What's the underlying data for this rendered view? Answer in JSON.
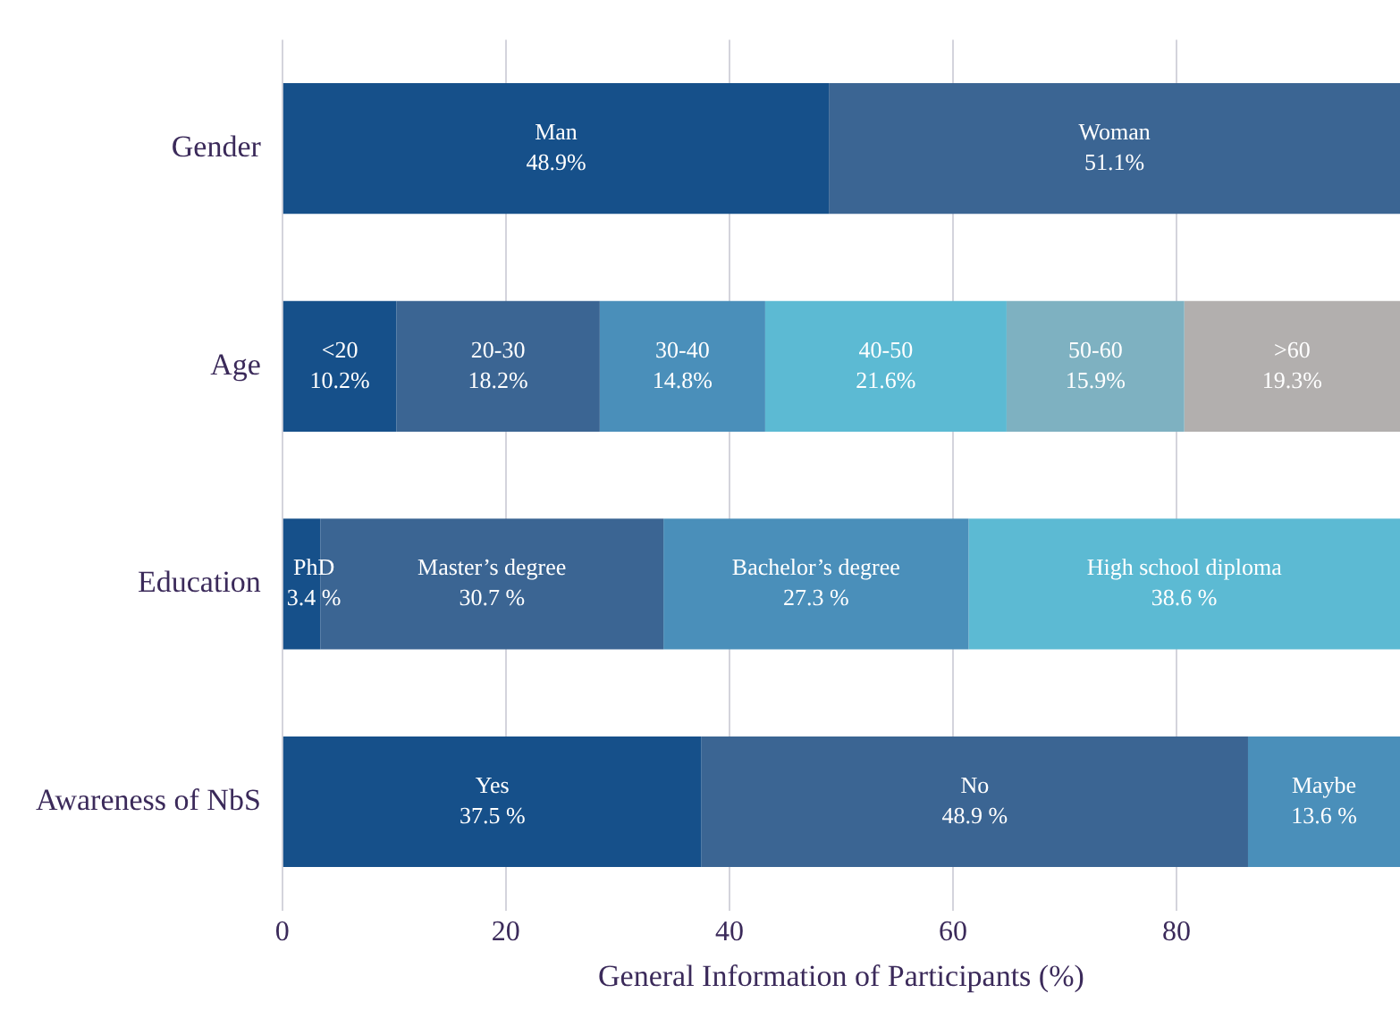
{
  "chart_data": {
    "type": "bar",
    "orientation": "horizontal",
    "stacked": true,
    "xlabel": "General Information of Participants (%)",
    "categories": [
      "Gender",
      "Age",
      "Education",
      "Awareness of NbS"
    ],
    "series": [
      {
        "color": "#16508a",
        "values": [
          48.9,
          10.2,
          3.4,
          37.5
        ],
        "value_labels": [
          "Man\n48.9%",
          "<20\n10.2%",
          "PhD\n3.4 %",
          "Yes\n37.5 %"
        ]
      },
      {
        "color": "#3b6593",
        "values": [
          51.1,
          18.2,
          30.7,
          48.9
        ],
        "value_labels": [
          "Woman\n51.1%",
          "20-30\n18.2%",
          "Master’s degree\n30.7 %",
          "No\n48.9 %"
        ]
      },
      {
        "color": "#4a8fba",
        "values": [
          null,
          14.8,
          27.3,
          13.6
        ],
        "value_labels": [
          null,
          "30-40\n14.8%",
          "Bachelor’s degree\n27.3 %",
          "Maybe\n13.6 %"
        ]
      },
      {
        "color": "#5cbad3",
        "values": [
          null,
          21.6,
          38.6,
          null
        ],
        "value_labels": [
          null,
          "40-50\n21.6%",
          "High school diploma\n38.6 %",
          null
        ]
      },
      {
        "color": "#7eb1c1",
        "values": [
          null,
          15.9,
          null,
          null
        ],
        "value_labels": [
          null,
          "50-60\n15.9%",
          null,
          null
        ]
      },
      {
        "color": "#b2afae",
        "values": [
          null,
          19.3,
          null,
          null
        ],
        "value_labels": [
          null,
          ">60\n19.3%",
          null,
          null
        ]
      }
    ],
    "xlim": [
      0,
      100
    ],
    "xticks": [
      0,
      20,
      40,
      60,
      80
    ],
    "grid": "x",
    "legend": false
  }
}
